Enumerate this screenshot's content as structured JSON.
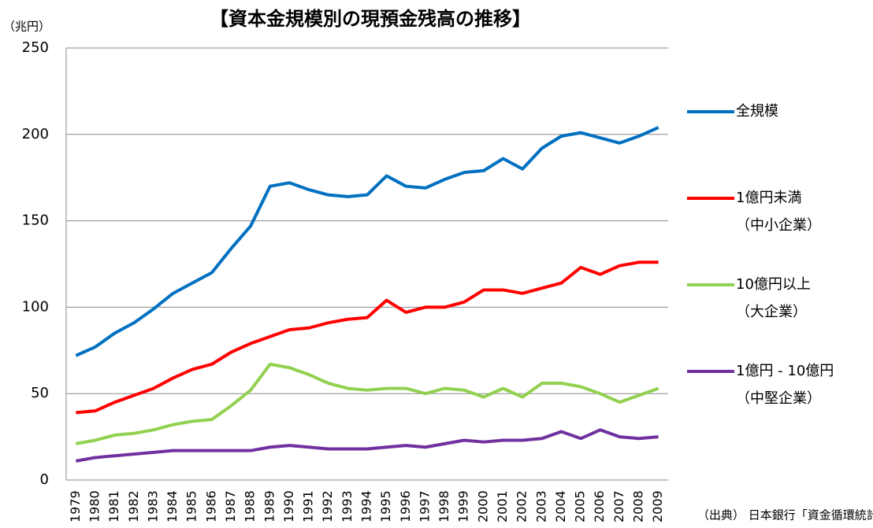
{
  "chart_data": {
    "type": "line",
    "title": "【資本金規模別の現預金残高の推移】",
    "y_unit": "（兆円）",
    "source": "（出典） 日本銀行「資金循環統計」",
    "categories": [
      "1979",
      "1980",
      "1981",
      "1982",
      "1983",
      "1984",
      "1985",
      "1986",
      "1987",
      "1988",
      "1989",
      "1990",
      "1991",
      "1992",
      "1993",
      "1994",
      "1995",
      "1996",
      "1997",
      "1998",
      "1999",
      "2000",
      "2001",
      "2002",
      "2003",
      "2004",
      "2005",
      "2006",
      "2007",
      "2008",
      "2009"
    ],
    "series": [
      {
        "name": "全規模",
        "color": "#0070c0",
        "values": [
          72,
          77,
          85,
          91,
          99,
          108,
          114,
          120,
          134,
          147,
          170,
          172,
          168,
          165,
          164,
          165,
          176,
          170,
          169,
          174,
          178,
          179,
          186,
          180,
          192,
          199,
          201,
          198,
          195,
          199,
          204
        ]
      },
      {
        "name": "1億円未満",
        "note": "（中小企業）",
        "color": "#ff0000",
        "values": [
          39,
          40,
          45,
          49,
          53,
          59,
          64,
          67,
          74,
          79,
          83,
          87,
          88,
          91,
          93,
          94,
          104,
          97,
          100,
          100,
          103,
          110,
          110,
          108,
          111,
          114,
          123,
          119,
          124,
          126,
          126
        ]
      },
      {
        "name": "10億円以上",
        "note": "（大企業）",
        "color": "#92d050",
        "values": [
          21,
          23,
          26,
          27,
          29,
          32,
          34,
          35,
          43,
          52,
          67,
          65,
          61,
          56,
          53,
          52,
          53,
          53,
          50,
          53,
          52,
          48,
          53,
          48,
          56,
          56,
          54,
          50,
          45,
          49,
          53
        ]
      },
      {
        "name": "1億円 - 10億円",
        "note": "（中堅企業）",
        "color": "#7030a0",
        "values": [
          11,
          13,
          14,
          15,
          16,
          17,
          17,
          17,
          17,
          17,
          19,
          20,
          19,
          18,
          18,
          18,
          19,
          20,
          19,
          21,
          23,
          22,
          23,
          23,
          24,
          28,
          24,
          29,
          25,
          24,
          25
        ]
      }
    ],
    "ylim": [
      0,
      250
    ],
    "yticks": [
      0,
      50,
      100,
      150,
      200,
      250
    ],
    "grid": true
  }
}
